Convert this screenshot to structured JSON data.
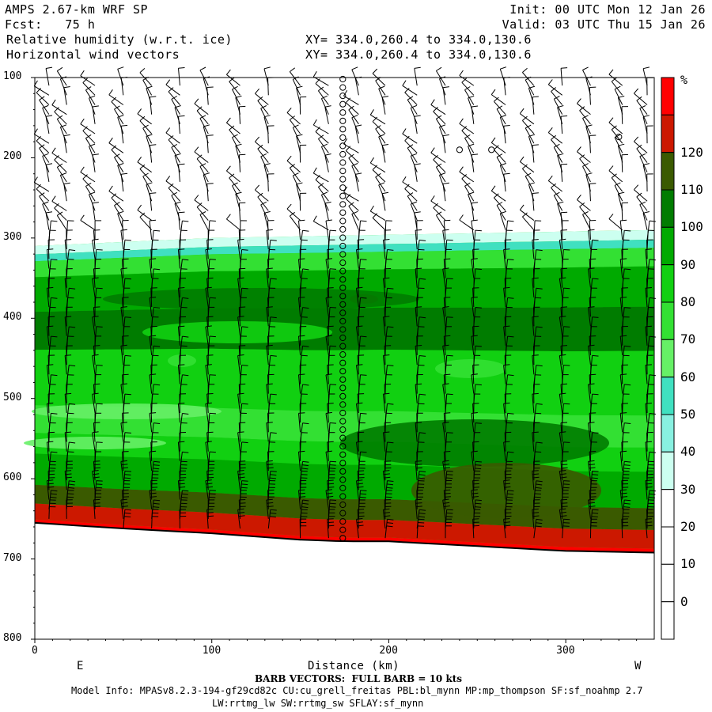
{
  "header": {
    "model": "AMPS 2.67-km WRF SP",
    "forecast": "Fcst:   75 h",
    "field1": "Relative humidity (w.r.t. ice)",
    "field2": "Horizontal wind vectors",
    "xy1": "XY= 334.0,260.4 to 334.0,130.6",
    "xy2": "XY= 334.0,260.4 to 334.0,130.6",
    "init": "Init: 00 UTC Mon 12 Jan 26",
    "valid": "Valid: 03 UTC Thu 15 Jan 26"
  },
  "footer": {
    "barb_note": "BARB VECTORS:  FULL BARB = 10 kts",
    "model_info_1": "Model Info: MPASv8.2.3-194-gf29cd82c CU:cu_grell_freitas PBL:bl_mynn MP:mp_thompson SF:sf_noahmp 2.7",
    "model_info_2": "LW:rrtmg_lw SW:rrtmg_sw SFLAY:sf_mynn"
  },
  "colors": {
    "c0": "#ffffff",
    "c30": "#ccfff0",
    "c40": "#88f0e0",
    "c50": "#40e0c0",
    "c60": "#66f066",
    "c70": "#33e033",
    "c80": "#11d011",
    "c90": "#00aa00",
    "c100": "#007c00",
    "c110": "#3a5a00",
    "c120": "#cc1800",
    "c130": "#ff0000"
  },
  "chart_data": {
    "type": "cross-section",
    "title": "Relative humidity (w.r.t. ice)",
    "xlabel": "Distance (km)",
    "ylabel": "",
    "xlim": [
      0,
      350
    ],
    "ylim": [
      800,
      100
    ],
    "x_ticks": [
      0,
      100,
      200,
      300
    ],
    "y_ticks": [
      100,
      200,
      300,
      400,
      500,
      600,
      700,
      800
    ],
    "x_end_labels": {
      "left": "E",
      "right": "W"
    },
    "colorbar": {
      "unit": "%",
      "levels": [
        0,
        10,
        20,
        30,
        40,
        50,
        60,
        70,
        80,
        90,
        100,
        110,
        120
      ],
      "bins": [
        {
          "range": "<0",
          "color": "#ffffff"
        },
        {
          "range": "0-10",
          "color": "#ffffff"
        },
        {
          "range": "10-20",
          "color": "#ffffff"
        },
        {
          "range": "20-30",
          "color": "#ffffff"
        },
        {
          "range": "30-40",
          "color": "#ccfff0"
        },
        {
          "range": "40-50",
          "color": "#88f0e0"
        },
        {
          "range": "50-60",
          "color": "#40e0c0"
        },
        {
          "range": "60-70",
          "color": "#66f066"
        },
        {
          "range": "70-80",
          "color": "#33e033"
        },
        {
          "range": "80-90",
          "color": "#11d011"
        },
        {
          "range": "90-100",
          "color": "#00aa00"
        },
        {
          "range": "100-110",
          "color": "#007c00"
        },
        {
          "range": "110-120",
          "color": "#3a5a00"
        },
        {
          "range": "120-130",
          "color": "#cc1800"
        },
        {
          "range": ">130",
          "color": "#ff0000"
        }
      ]
    },
    "terrain_pressure": [
      [
        0,
        655
      ],
      [
        50,
        662
      ],
      [
        100,
        668
      ],
      [
        150,
        676
      ],
      [
        175,
        678
      ],
      [
        200,
        678
      ],
      [
        250,
        684
      ],
      [
        300,
        690
      ],
      [
        350,
        692
      ]
    ],
    "moist_top_pressure": [
      [
        0,
        310
      ],
      [
        100,
        300
      ],
      [
        200,
        296
      ],
      [
        300,
        292
      ],
      [
        350,
        290
      ]
    ],
    "barb_columns_km": [
      8,
      18,
      34,
      50,
      66,
      82,
      98,
      116,
      132,
      150,
      166,
      183,
      198,
      216,
      232,
      248,
      266,
      282,
      298,
      314,
      332,
      346
    ],
    "calm_column_km": 174
  }
}
